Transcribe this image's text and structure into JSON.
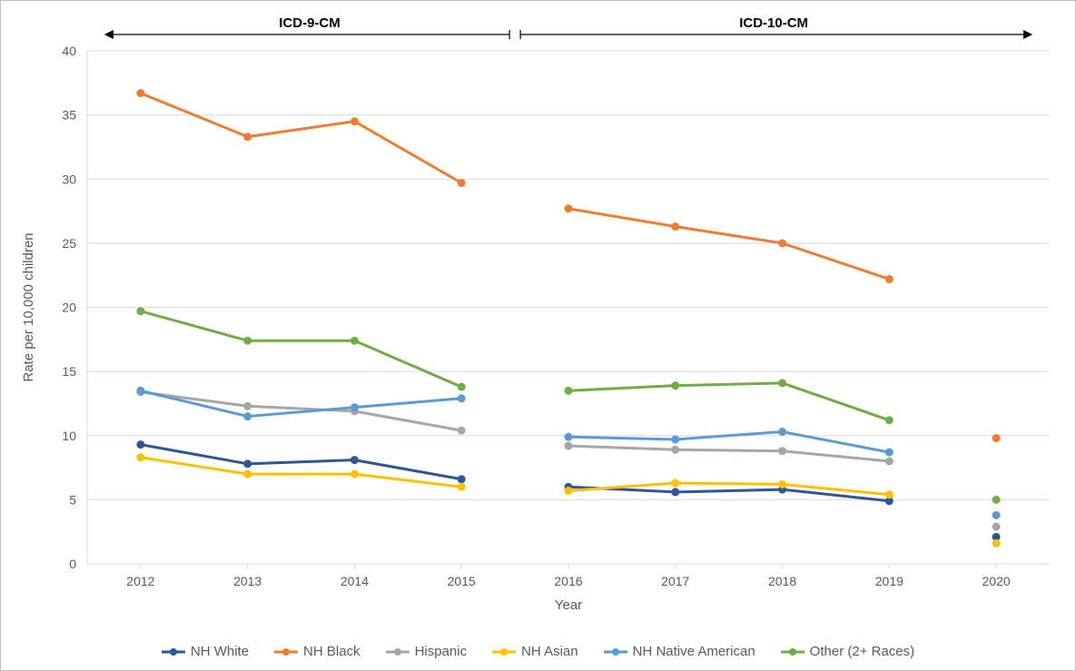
{
  "chart": {
    "type": "line",
    "background_color": "#ffffff",
    "border_color": "#bfbfbf",
    "plot_background_color": "#ffffff",
    "gridline_color": "#d9d9d9",
    "axis_line_color": "#d9d9d9",
    "tick_font_color": "#595959",
    "tick_fontsize": 14,
    "label_fontsize": 15,
    "xlabel": "Year",
    "ylabel": "Rate per 10,000 children",
    "ylim": [
      0,
      40
    ],
    "ytick_step": 5,
    "yticks": [
      0,
      5,
      10,
      15,
      20,
      25,
      30,
      35,
      40
    ],
    "categories": [
      "2012",
      "2013",
      "2014",
      "2015",
      "2016",
      "2017",
      "2018",
      "2019",
      "2020"
    ],
    "line_width": 3,
    "marker_radius": 4.5,
    "series": [
      {
        "key": "nh_white",
        "name": "NH White",
        "color": "#2f5597",
        "seg1": [
          9.3,
          7.8,
          8.1,
          6.6
        ],
        "seg2": [
          6.0,
          5.6,
          5.8,
          4.9
        ],
        "point2020": 2.1
      },
      {
        "key": "nh_black",
        "name": "NH Black",
        "color": "#ed7d31",
        "seg1": [
          36.7,
          33.3,
          34.5,
          29.7
        ],
        "seg2": [
          27.7,
          26.3,
          25.0,
          22.2
        ],
        "point2020": 9.8
      },
      {
        "key": "hispanic",
        "name": "Hispanic",
        "color": "#a6a6a6",
        "seg1": [
          13.4,
          12.3,
          11.9,
          10.4
        ],
        "seg2": [
          9.2,
          8.9,
          8.8,
          8.0
        ],
        "point2020": 2.9
      },
      {
        "key": "nh_asian",
        "name": "NH Asian",
        "color": "#ffc000",
        "seg1": [
          8.3,
          7.0,
          7.0,
          6.0
        ],
        "seg2": [
          5.7,
          6.3,
          6.2,
          5.4
        ],
        "point2020": 1.6
      },
      {
        "key": "nh_native",
        "name": "NH Native American",
        "color": "#5b9bd5",
        "seg1": [
          13.5,
          11.5,
          12.2,
          12.9
        ],
        "seg2": [
          9.9,
          9.7,
          10.3,
          8.7
        ],
        "point2020": 3.8
      },
      {
        "key": "other",
        "name": "Other (2+ Races)",
        "color": "#70ad47",
        "seg1": [
          19.7,
          17.4,
          17.4,
          13.8
        ],
        "seg2": [
          13.5,
          13.9,
          14.1,
          11.2
        ],
        "point2020": 5.0
      }
    ],
    "annotations": {
      "left": "ICD-9-CM",
      "right": "ICD-10-CM",
      "fontsize": 15,
      "fontweight": "bold",
      "arrow_color": "#000000"
    },
    "legend_order": [
      "nh_white",
      "nh_black",
      "hispanic",
      "nh_asian",
      "nh_native",
      "other"
    ]
  }
}
